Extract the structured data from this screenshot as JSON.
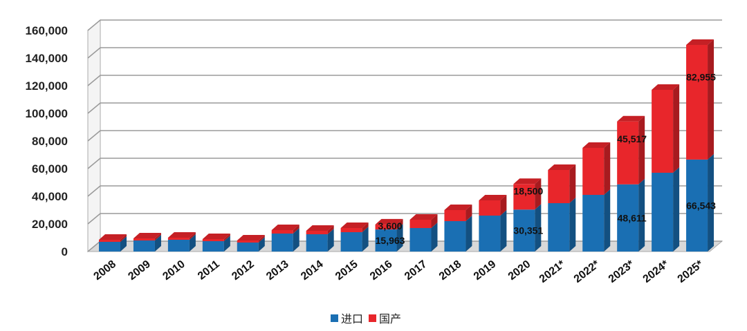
{
  "chart_data": {
    "type": "bar",
    "stacked": true,
    "style": "3d",
    "categories": [
      "2008",
      "2009",
      "2010",
      "2011",
      "2012",
      "2013",
      "2014",
      "2015",
      "2016",
      "2017",
      "2018",
      "2019",
      "2020",
      "2021*",
      "2022*",
      "2023*",
      "2024*",
      "2025*"
    ],
    "series": [
      {
        "name": "进口",
        "color": "#1a6fb3",
        "values": [
          7000,
          8000,
          8500,
          7500,
          6500,
          13000,
          12500,
          14000,
          15963,
          17000,
          22000,
          26000,
          30351,
          35000,
          41000,
          48611,
          57000,
          66543
        ]
      },
      {
        "name": "国产",
        "color": "#e8262b",
        "values": [
          1500,
          1500,
          1500,
          1500,
          1500,
          2500,
          2500,
          3000,
          3600,
          6000,
          8000,
          11000,
          18500,
          24000,
          34000,
          45517,
          60000,
          82955
        ]
      }
    ],
    "data_labels": [
      {
        "category": "2016",
        "series": "国产",
        "text": "3,600"
      },
      {
        "category": "2016",
        "series": "进口",
        "text": "15,963"
      },
      {
        "category": "2020",
        "series": "国产",
        "text": "18,500"
      },
      {
        "category": "2020",
        "series": "进口",
        "text": "30,351"
      },
      {
        "category": "2023*",
        "series": "国产",
        "text": "45,517"
      },
      {
        "category": "2023*",
        "series": "进口",
        "text": "48,611"
      },
      {
        "category": "2025*",
        "series": "国产",
        "text": "82,955"
      },
      {
        "category": "2025*",
        "series": "进口",
        "text": "66,543"
      }
    ],
    "yticks": [
      "0",
      "20,000",
      "40,000",
      "60,000",
      "80,000",
      "100,000",
      "120,000",
      "140,000",
      "160,000"
    ],
    "ylim": [
      0,
      160000
    ],
    "grid": true,
    "legend_position": "bottom"
  }
}
